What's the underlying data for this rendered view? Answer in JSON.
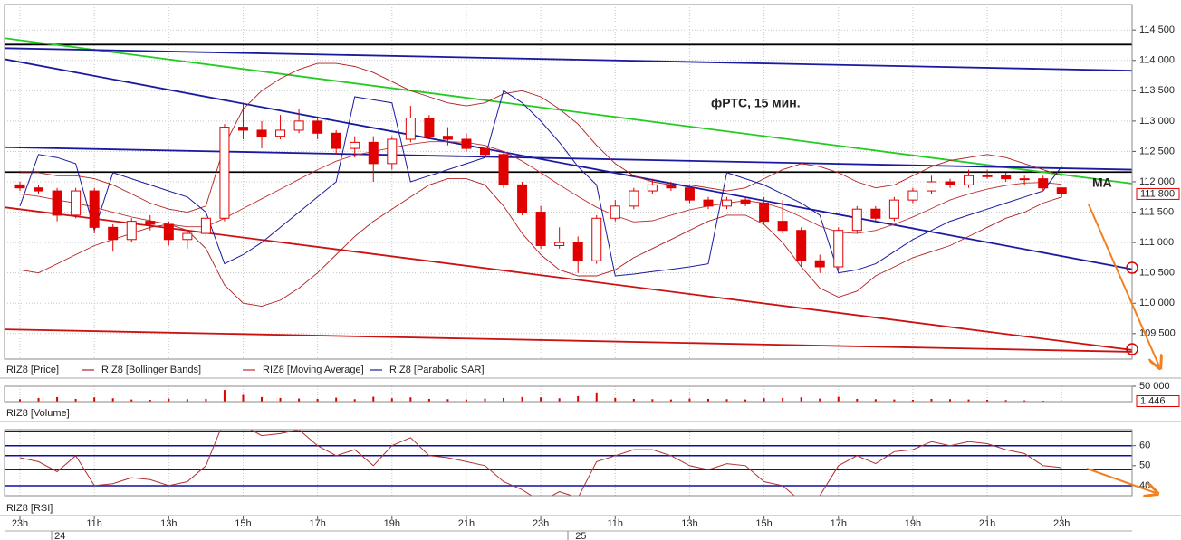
{
  "chart_data": [
    {
      "type": "candlestick",
      "annotations": [
        "фРТС, 15 мин.",
        "MA"
      ],
      "categories": [
        "23h",
        null,
        null,
        null,
        "11h",
        null,
        null,
        null,
        "13h",
        null,
        null,
        null,
        "15h",
        null,
        null,
        null,
        "17h",
        null,
        null,
        null,
        "19h",
        null,
        null,
        null,
        "21h",
        null,
        null,
        null,
        "23h",
        null,
        null,
        null,
        "11h",
        null,
        null,
        null,
        "13h",
        null,
        null,
        null,
        "15h",
        null,
        null,
        null,
        "17h",
        null,
        null,
        null,
        "19h",
        null,
        null,
        null,
        "21h",
        null,
        null,
        null,
        "23h"
      ],
      "dates": [
        null,
        null,
        "24",
        null,
        null,
        null,
        null,
        null,
        null,
        null,
        null,
        null,
        null,
        null,
        null,
        null,
        null,
        null,
        null,
        null,
        null,
        null,
        null,
        null,
        null,
        null,
        null,
        null,
        null,
        null,
        "25",
        null,
        null,
        null,
        null,
        null,
        null,
        null,
        null,
        null,
        null,
        null,
        null,
        null,
        null,
        null,
        null,
        null,
        null,
        null,
        null,
        null,
        null,
        null,
        null,
        null,
        null
      ],
      "ylim": [
        109080,
        114920
      ],
      "yticks": [
        {
          "value": 109500,
          "label": "109 500"
        },
        {
          "value": 110000,
          "label": "110 000"
        },
        {
          "value": 110500,
          "label": "110 500"
        },
        {
          "value": 111000,
          "label": "111 000"
        },
        {
          "value": 111500,
          "label": "111 500"
        },
        {
          "value": 112000,
          "label": "112 000"
        },
        {
          "value": 112500,
          "label": "112 500"
        },
        {
          "value": 113000,
          "label": "113 000"
        },
        {
          "value": 113500,
          "label": "113 500"
        },
        {
          "value": 114000,
          "label": "114 000"
        },
        {
          "value": 114500,
          "label": "114 500"
        }
      ],
      "grid": true,
      "last": {
        "value": 111800,
        "label": "111 800"
      },
      "series": [
        {
          "name": "RIZ8 [Price]",
          "color": "#e00000",
          "ohlc": [
            [
              111950,
              112000,
              111850,
              111900
            ],
            [
              111900,
              111950,
              111800,
              111850
            ],
            [
              111850,
              111900,
              111350,
              111450
            ],
            [
              111450,
              111900,
              111400,
              111850
            ],
            [
              111850,
              111900,
              111150,
              111250
            ],
            [
              111250,
              111300,
              110850,
              111050
            ],
            [
              111050,
              111400,
              111000,
              111350
            ],
            [
              111350,
              111450,
              111200,
              111300
            ],
            [
              111300,
              111350,
              110950,
              111050
            ],
            [
              111050,
              111200,
              110900,
              111150
            ],
            [
              111150,
              111450,
              111100,
              111400
            ],
            [
              111400,
              112950,
              111350,
              112900
            ],
            [
              112900,
              113300,
              112700,
              112850
            ],
            [
              112850,
              113000,
              112550,
              112750
            ],
            [
              112750,
              113100,
              112700,
              112850
            ],
            [
              112850,
              113200,
              112800,
              113000
            ],
            [
              113000,
              113050,
              112700,
              112800
            ],
            [
              112800,
              112850,
              112450,
              112550
            ],
            [
              112550,
              112750,
              112400,
              112650
            ],
            [
              112650,
              112750,
              112000,
              112300
            ],
            [
              112300,
              112750,
              112200,
              112700
            ],
            [
              112700,
              113250,
              112650,
              113050
            ],
            [
              113050,
              113100,
              112700,
              112750
            ],
            [
              112750,
              112900,
              112600,
              112700
            ],
            [
              112700,
              112800,
              112500,
              112550
            ],
            [
              112550,
              112650,
              112400,
              112450
            ],
            [
              112450,
              112500,
              111900,
              111950
            ],
            [
              111950,
              112000,
              111450,
              111500
            ],
            [
              111500,
              111600,
              110900,
              110950
            ],
            [
              110950,
              111250,
              110900,
              111000
            ],
            [
              111000,
              111100,
              110500,
              110700
            ],
            [
              110700,
              111450,
              110650,
              111400
            ],
            [
              111400,
              111700,
              111350,
              111600
            ],
            [
              111600,
              111900,
              111550,
              111850
            ],
            [
              111850,
              112050,
              111800,
              111950
            ],
            [
              111950,
              112000,
              111850,
              111900
            ],
            [
              111900,
              111950,
              111650,
              111700
            ],
            [
              111700,
              111750,
              111550,
              111600
            ],
            [
              111600,
              111750,
              111550,
              111700
            ],
            [
              111700,
              111750,
              111600,
              111650
            ],
            [
              111650,
              111750,
              111300,
              111350
            ],
            [
              111350,
              111700,
              111150,
              111200
            ],
            [
              111200,
              111250,
              110600,
              110700
            ],
            [
              110700,
              110800,
              110500,
              110600
            ],
            [
              110600,
              111250,
              110550,
              111200
            ],
            [
              111200,
              111600,
              111150,
              111550
            ],
            [
              111550,
              111600,
              111350,
              111400
            ],
            [
              111400,
              111750,
              111350,
              111700
            ],
            [
              111700,
              111900,
              111650,
              111850
            ],
            [
              111850,
              112100,
              111800,
              112000
            ],
            [
              112000,
              112050,
              111900,
              111950
            ],
            [
              111950,
              112200,
              111900,
              112100
            ],
            [
              112100,
              112200,
              112050,
              112100
            ],
            [
              112100,
              112150,
              112000,
              112050
            ],
            [
              112050,
              112100,
              111950,
              112050
            ],
            [
              112050,
              112100,
              111850,
              111900
            ],
            [
              111900,
              111900,
              111750,
              111800
            ]
          ]
        },
        {
          "name": "RIZ8 [Bollinger Bands]",
          "color": "#b02020",
          "upper": [
            112150,
            112150,
            112100,
            112100,
            112050,
            111950,
            111800,
            111650,
            111550,
            111500,
            111600,
            112600,
            113200,
            113500,
            113700,
            113850,
            113950,
            113950,
            113900,
            113800,
            113650,
            113500,
            113400,
            113300,
            113250,
            113300,
            113450,
            113500,
            113400,
            113200,
            112950,
            112600,
            112300,
            112100,
            112000,
            111950,
            111950,
            111900,
            111850,
            111900,
            112050,
            112200,
            112300,
            112250,
            112150,
            112000,
            111900,
            111950,
            112100,
            112250,
            112350,
            112400,
            112450,
            112400,
            112300,
            112200,
            112100
          ],
          "lower": [
            110550,
            110500,
            110650,
            110800,
            110950,
            111050,
            111150,
            111250,
            111300,
            111200,
            110900,
            110300,
            110000,
            109950,
            110050,
            110250,
            110500,
            110800,
            111100,
            111350,
            111550,
            111750,
            111950,
            112050,
            112050,
            111950,
            111600,
            111150,
            110800,
            110550,
            110450,
            110450,
            110550,
            110750,
            110900,
            111050,
            111200,
            111350,
            111450,
            111450,
            111300,
            111000,
            110600,
            110250,
            110100,
            110200,
            110450,
            110600,
            110750,
            110850,
            110950,
            111100,
            111250,
            111400,
            111500,
            111650,
            111750
          ]
        },
        {
          "name": "RIZ8 [Moving Average]",
          "color": "#c03030",
          "values": [
            111800,
            111760,
            111700,
            111650,
            111580,
            111500,
            111420,
            111360,
            111300,
            111260,
            111260,
            111400,
            111560,
            111720,
            111880,
            112040,
            112200,
            112340,
            112440,
            112500,
            112560,
            112620,
            112660,
            112660,
            112650,
            112600,
            112500,
            112340,
            112150,
            111950,
            111760,
            111580,
            111440,
            111340,
            111360,
            111450,
            111540,
            111600,
            111650,
            111690,
            111650,
            111560,
            111420,
            111270,
            111170,
            111150,
            111200,
            111300,
            111420,
            111560,
            111700,
            111800,
            111880,
            111940,
            111980,
            111990,
            111960
          ]
        },
        {
          "name": "RIZ8 [Parabolic SAR]",
          "color": "#1a1aa0",
          "values": [
            111600,
            112450,
            112400,
            112300,
            111200,
            112150,
            112050,
            111950,
            111850,
            111750,
            111500,
            110650,
            110800,
            111000,
            111250,
            111500,
            111750,
            112000,
            113400,
            113350,
            113300,
            112000,
            112100,
            112200,
            112300,
            112400,
            113500,
            113300,
            113000,
            112650,
            112250,
            111950,
            110450,
            110480,
            110520,
            110560,
            110600,
            110650,
            112150,
            112050,
            111950,
            111800,
            111650,
            111450,
            110500,
            110550,
            110650,
            110850,
            111050,
            111200,
            111350,
            111450,
            111550,
            111650,
            111750,
            111850,
            112250
          ]
        }
      ],
      "trend_lines": [
        {
          "color": "#000000",
          "start": 114260,
          "end": 114260
        },
        {
          "color": "#000000",
          "start": 112160,
          "end": 112160
        },
        {
          "color": "#22cc22",
          "start": 114365,
          "end": 111970
        },
        {
          "color": "#1a1aa0",
          "start": 114020,
          "end": 110560
        },
        {
          "color": "#1a1aa0",
          "start": 114200,
          "end": 113830
        },
        {
          "color": "#1a1aa0",
          "start": 112570,
          "end": 112200
        },
        {
          "color": "#cc1111",
          "start": 111580,
          "end": 109230
        },
        {
          "color": "#cc1111",
          "start": 109570,
          "end": 109200
        }
      ]
    },
    {
      "type": "bar",
      "label": "RIZ8 [Volume]",
      "color": "#e00000",
      "values": [
        8000,
        12000,
        15000,
        9000,
        14000,
        11000,
        7000,
        6000,
        10000,
        8000,
        9000,
        38000,
        22000,
        15000,
        12000,
        10000,
        9000,
        13000,
        8000,
        16000,
        11000,
        14000,
        9000,
        8000,
        7000,
        10000,
        12000,
        15000,
        14000,
        11000,
        18000,
        30000,
        12000,
        9000,
        8000,
        7000,
        10000,
        9000,
        8000,
        7000,
        11000,
        12000,
        14000,
        10000,
        16000,
        9000,
        8000,
        7000,
        6000,
        9000,
        8000,
        7000,
        6000,
        5000,
        4000,
        3000,
        1446
      ],
      "ylim": [
        0,
        50000
      ],
      "yticks": [
        {
          "value": 50000,
          "label": "50 000"
        }
      ],
      "last": {
        "value": 1446,
        "label": "1 446"
      }
    },
    {
      "type": "line",
      "label": "RIZ8 [RSI]",
      "color": "#b03030",
      "values": [
        54,
        52,
        47,
        55,
        40,
        41,
        44,
        43,
        40,
        42,
        50,
        73,
        70,
        65,
        66,
        68,
        60,
        55,
        58,
        50,
        60,
        64,
        55,
        54,
        52,
        50,
        42,
        38,
        32,
        37,
        34,
        52,
        55,
        58,
        58,
        55,
        50,
        48,
        51,
        50,
        42,
        40,
        32,
        35,
        50,
        55,
        51,
        57,
        58,
        62,
        60,
        62,
        61,
        58,
        56,
        50,
        49
      ],
      "ylim": [
        35,
        68
      ],
      "yticks": [
        40,
        50,
        60
      ],
      "levels": [
        67,
        60,
        55,
        48,
        40
      ],
      "level_color": "#1010a0"
    }
  ]
}
